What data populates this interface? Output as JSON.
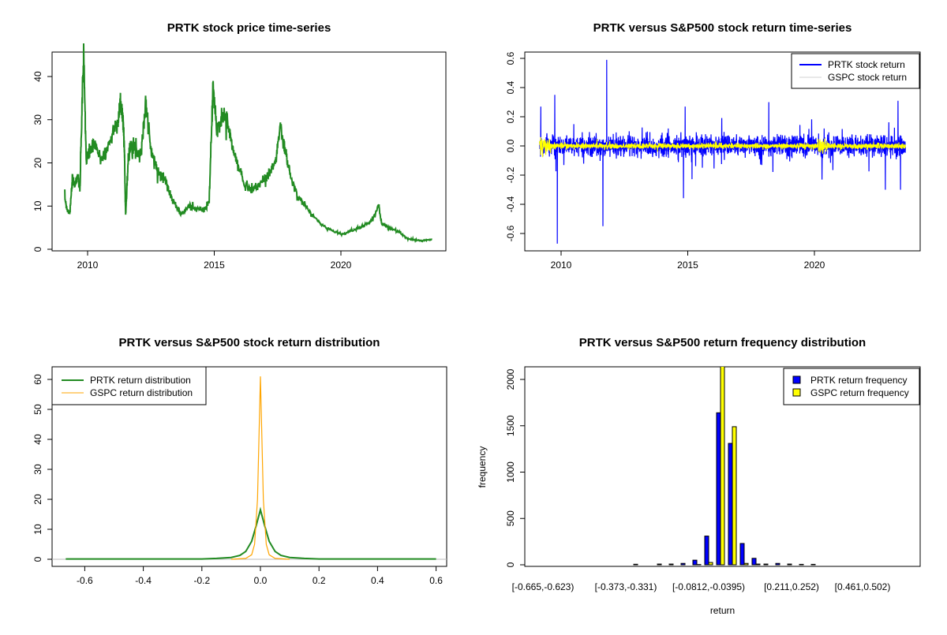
{
  "chart_data": [
    {
      "type": "line",
      "title": "PRTK stock price time-series",
      "xlabel": "",
      "ylabel": "",
      "xlim": [
        2009,
        2023.6
      ],
      "ylim": [
        0,
        45
      ],
      "x_ticks": [
        "2010",
        "2015",
        "2020"
      ],
      "y_ticks": [
        "0",
        "10",
        "20",
        "30",
        "40"
      ],
      "grid": false,
      "series": [
        {
          "color": "#228B22",
          "x": [
            2009.1,
            2009.2,
            2009.3,
            2009.4,
            2009.5,
            2009.6,
            2009.7,
            2009.8,
            2009.85,
            2009.95,
            2010.1,
            2010.3,
            2010.5,
            2010.7,
            2011.0,
            2011.2,
            2011.3,
            2011.4,
            2011.45,
            2011.5,
            2011.6,
            2011.7,
            2011.9,
            2012.1,
            2012.3,
            2012.5,
            2012.7,
            2012.9,
            2013.1,
            2013.3,
            2013.5,
            2013.7,
            2014.0,
            2014.3,
            2014.6,
            2014.8,
            2014.95,
            2015.1,
            2015.3,
            2015.5,
            2015.7,
            2015.9,
            2016.2,
            2016.5,
            2016.8,
            2017.1,
            2017.4,
            2017.6,
            2017.8,
            2018.0,
            2018.3,
            2018.6,
            2019.0,
            2019.4,
            2019.8,
            2020.1,
            2020.5,
            2020.9,
            2021.2,
            2021.5,
            2021.6,
            2021.9,
            2022.3,
            2022.6,
            2022.9,
            2023.2,
            2023.6
          ],
          "y": [
            12,
            9,
            8.5,
            16,
            15,
            17,
            14,
            38,
            44,
            20,
            23,
            24,
            21,
            22,
            27,
            30,
            34,
            30,
            24,
            8,
            20,
            25,
            23,
            22,
            34,
            23,
            19,
            17,
            16,
            12,
            10,
            8,
            10,
            9.5,
            9,
            11,
            38,
            27,
            31,
            30,
            24,
            20,
            15,
            14,
            15,
            17,
            20,
            28,
            23,
            17,
            12,
            10,
            7,
            5,
            4,
            3.5,
            4.5,
            5.5,
            6.5,
            10,
            6,
            5,
            4,
            2.5,
            2.2,
            2,
            2.3
          ]
        }
      ]
    },
    {
      "type": "line",
      "title": "PRTK versus S&P500 stock return time-series",
      "xlabel": "",
      "ylabel": "",
      "xlim": [
        2009,
        2023.6
      ],
      "ylim": [
        -0.67,
        0.6
      ],
      "x_ticks": [
        "2010",
        "2015",
        "2020"
      ],
      "y_ticks": [
        "-0.6",
        "-0.4",
        "-0.2",
        "0.0",
        "0.2",
        "0.4",
        "0.6"
      ],
      "legend": "top-right",
      "series": [
        {
          "name": "PRTK stock return",
          "color": "#0000FF",
          "notable_points": {
            "x": [
              2009.2,
              2009.75,
              2009.85,
              2011.65,
              2011.8,
              2014.9,
              2018.2,
              2020.3,
              2022.8,
              2023.3,
              2023.4
            ],
            "y": [
              0.27,
              0.35,
              -0.67,
              -0.55,
              0.59,
              0.27,
              0.3,
              -0.23,
              -0.3,
              0.31,
              -0.3
            ]
          }
        },
        {
          "name": "GSPC stock return",
          "color": "#FFFF00",
          "legend_color": "#D3D3D3"
        }
      ]
    },
    {
      "type": "line",
      "title": "PRTK versus S&P500 stock return distribution",
      "xlabel": "",
      "ylabel": "",
      "xlim": [
        -0.68,
        0.63
      ],
      "ylim": [
        0,
        62
      ],
      "x_ticks": [
        "-0.6",
        "-0.4",
        "-0.2",
        "0.0",
        "0.2",
        "0.4",
        "0.6"
      ],
      "y_ticks": [
        "0",
        "10",
        "20",
        "30",
        "40",
        "50",
        "60"
      ],
      "legend": "top-left",
      "series": [
        {
          "name": "PRTK return distribution",
          "color": "#228B22",
          "x": [
            -0.665,
            -0.2,
            -0.15,
            -0.1,
            -0.07,
            -0.05,
            -0.03,
            -0.015,
            0,
            0.015,
            0.03,
            0.05,
            0.07,
            0.1,
            0.15,
            0.2,
            0.6
          ],
          "y": [
            0.1,
            0.1,
            0.3,
            0.6,
            1.3,
            2.6,
            6,
            11,
            16.5,
            11,
            6,
            2.6,
            1.3,
            0.6,
            0.3,
            0.1,
            0.1
          ]
        },
        {
          "name": "GSPC return distribution",
          "color": "#FFA500",
          "x": [
            -0.1,
            -0.05,
            -0.03,
            -0.02,
            -0.01,
            -0.005,
            0,
            0.005,
            0.01,
            0.02,
            0.03,
            0.05,
            0.1
          ],
          "y": [
            0,
            0.3,
            1.5,
            5,
            20,
            40,
            61,
            40,
            20,
            5,
            1.5,
            0.3,
            0
          ]
        }
      ]
    },
    {
      "type": "bar",
      "title": "PRTK versus S&P500 return frequency distribution",
      "xlabel": "return",
      "ylabel": "frequency",
      "ylim": [
        0,
        2130
      ],
      "y_ticks": [
        "0",
        "500",
        "1000",
        "1500",
        "2000"
      ],
      "shown_category_labels": {
        "0": "[-0.665,-0.623)",
        "7": "[-0.373,-0.331)",
        "14": "[-0.0812,-0.0395)",
        "21": "[0.211,0.252)",
        "27": "[0.461,0.502)"
      },
      "legend": "top-right",
      "series": [
        {
          "name": "PRTK return frequency",
          "color": "#0000FF",
          "values": [
            0,
            0,
            0,
            0,
            0,
            0,
            0,
            0,
            6,
            0,
            8,
            8,
            15,
            50,
            310,
            1640,
            1310,
            230,
            70,
            8,
            15,
            8,
            5,
            5,
            0,
            0,
            0,
            0,
            0,
            0,
            0
          ]
        },
        {
          "name": "GSPC return frequency",
          "color": "#FFFF00",
          "values": [
            0,
            0,
            0,
            0,
            0,
            0,
            0,
            0,
            0,
            0,
            0,
            0,
            0,
            3,
            25,
            2200,
            1490,
            15,
            8,
            0,
            0,
            0,
            0,
            0,
            0,
            0,
            0,
            0,
            0,
            0,
            0
          ]
        }
      ]
    }
  ]
}
